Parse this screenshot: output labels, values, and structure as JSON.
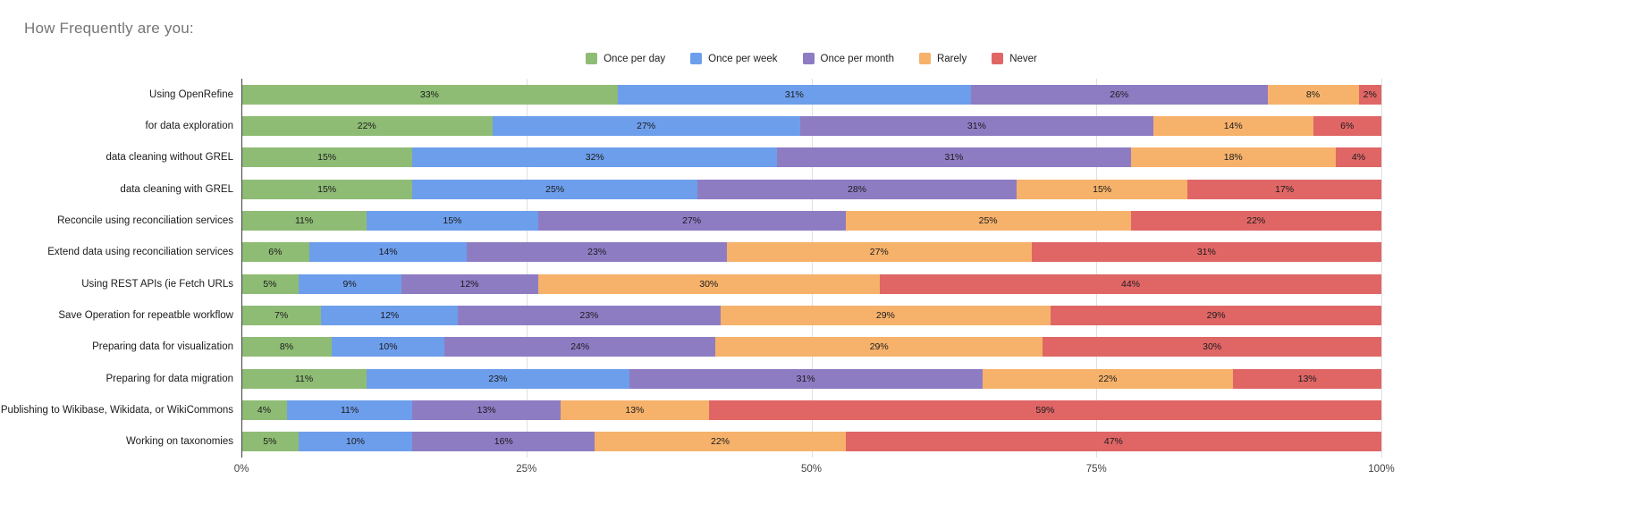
{
  "title": "How Frequently are you:",
  "chart_data": {
    "type": "bar",
    "orientation": "horizontal",
    "stacked": true,
    "title": "How Frequently are you:",
    "legend_position": "top",
    "grid": true,
    "x_range": [
      0,
      100
    ],
    "x_ticks": [
      "0%",
      "25%",
      "50%",
      "75%",
      "100%"
    ],
    "value_label_suffix": "%",
    "categories": [
      "Using OpenRefine",
      "for data exploration",
      "data cleaning without GREL",
      "data cleaning with GREL",
      "Reconcile using reconciliation services",
      "Extend data using reconciliation services",
      "Using REST APIs (ie Fetch URLs",
      "Save Operation for repeatble workflow",
      "Preparing data for visualization",
      "Preparing for data migration",
      "Publishing to Wikibase, Wikidata, or WikiCommons",
      "Working on taxonomies"
    ],
    "series": [
      {
        "name": "Once per day",
        "color": "#8fbc75",
        "values": [
          33,
          22,
          15,
          15,
          11,
          6,
          5,
          7,
          8,
          11,
          4,
          5
        ]
      },
      {
        "name": "Once per week",
        "color": "#6d9eeb",
        "values": [
          31,
          27,
          32,
          25,
          15,
          14,
          9,
          12,
          10,
          23,
          11,
          10
        ]
      },
      {
        "name": "Once per month",
        "color": "#8e7cc3",
        "values": [
          26,
          31,
          31,
          28,
          27,
          23,
          12,
          23,
          24,
          31,
          13,
          16
        ]
      },
      {
        "name": "Rarely",
        "color": "#f6b26b",
        "values": [
          8,
          14,
          18,
          15,
          25,
          27,
          30,
          29,
          29,
          22,
          13,
          22
        ]
      },
      {
        "name": "Never",
        "color": "#e06666",
        "values": [
          2,
          6,
          4,
          17,
          22,
          31,
          44,
          29,
          30,
          13,
          59,
          47
        ]
      }
    ],
    "colors": {
      "axis_line": "#424242",
      "gridline": "#e0e0e0",
      "axis_text": "#424242",
      "title_text": "#757575"
    }
  }
}
